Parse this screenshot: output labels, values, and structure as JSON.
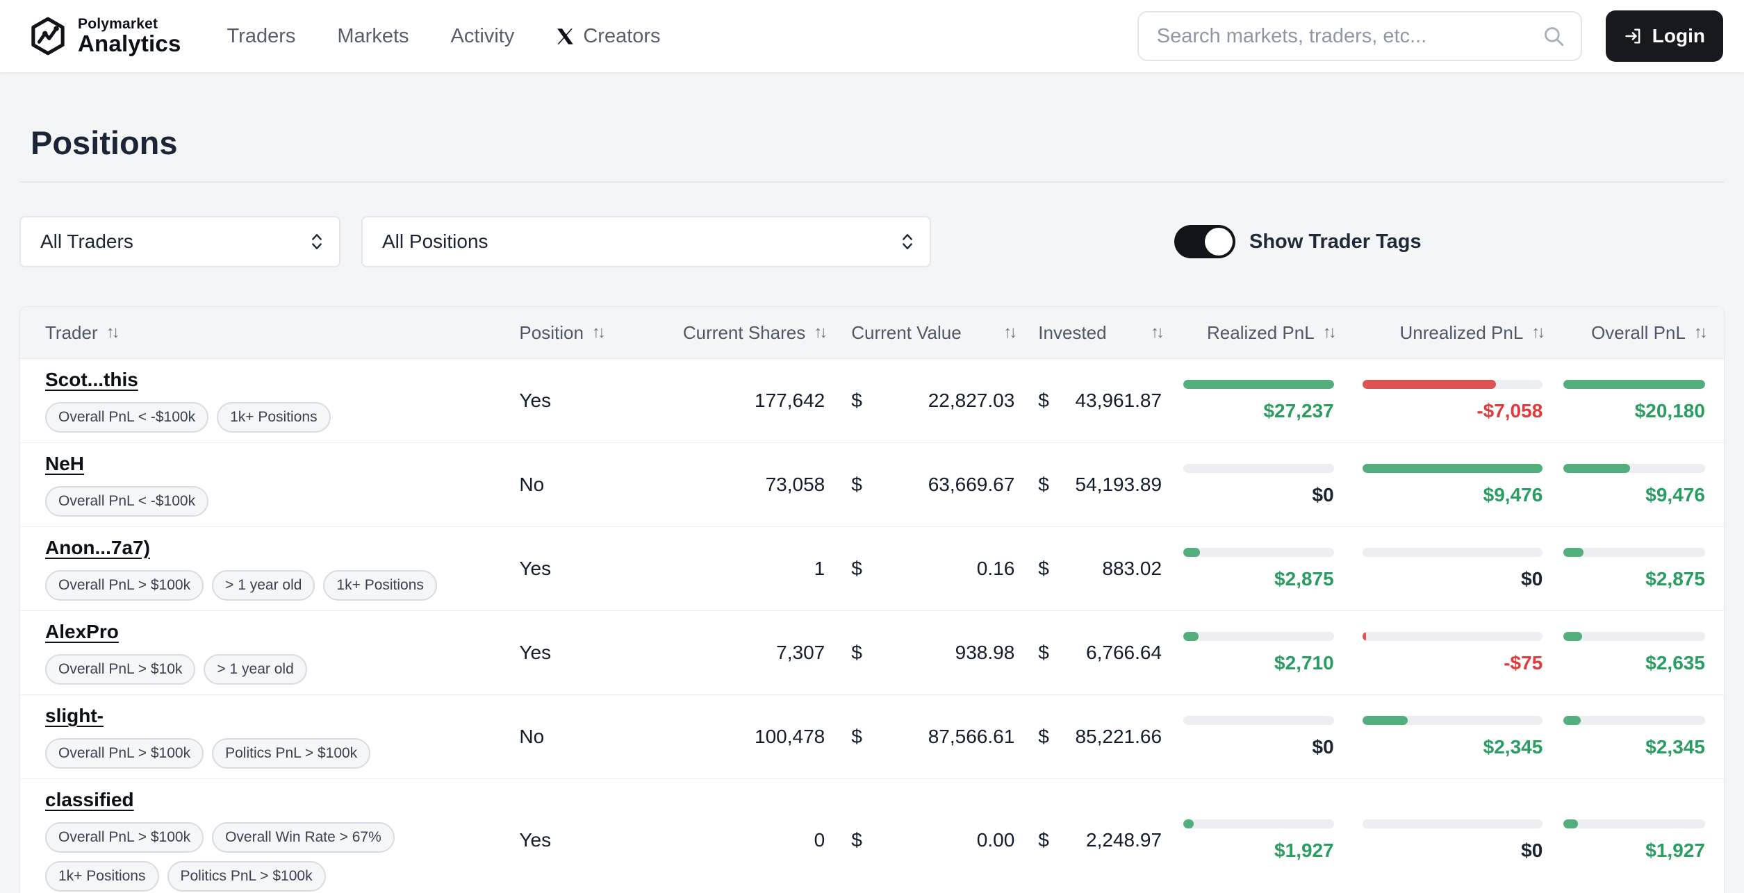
{
  "brand": {
    "line1": "Polymarket",
    "line2": "Analytics"
  },
  "nav": [
    {
      "label": "Traders"
    },
    {
      "label": "Markets"
    },
    {
      "label": "Activity"
    },
    {
      "label": "Creators",
      "icon": "x-logo-icon"
    }
  ],
  "search": {
    "placeholder": "Search markets, traders, etc..."
  },
  "login": {
    "label": "Login",
    "icon": "login-arrow-icon"
  },
  "page": {
    "title": "Positions"
  },
  "filters": {
    "traders_value": "All Traders",
    "positions_value": "All Positions",
    "toggle_label": "Show Trader Tags",
    "toggle_on": true
  },
  "colors": {
    "green_text": "#2b9c62",
    "green_bar": "#53ae7d",
    "red_text": "#de3c3c",
    "red_bar": "#dd5252",
    "neutral_text": "#1b2433",
    "bar_track": "#edeef1",
    "accent_dark": "#17191e"
  },
  "table": {
    "columns": [
      "Trader",
      "Position",
      "Current Shares",
      "Current Value",
      "Invested",
      "Realized PnL",
      "Unrealized PnL",
      "Overall PnL"
    ],
    "currency": "$",
    "sort_icon": "↑↓",
    "rows": [
      {
        "trader": "Scot...this",
        "tags": [
          "Overall PnL < -$100k",
          "1k+ Positions"
        ],
        "position": "Yes",
        "shares": "177,642",
        "value": "22,827.03",
        "invested": "43,961.87",
        "realized": {
          "label": "$27,237",
          "pct": 100,
          "tone": "green"
        },
        "unrealized": {
          "label": "-$7,058",
          "pct": 74,
          "tone": "red"
        },
        "overall": {
          "label": "$20,180",
          "pct": 100,
          "tone": "green"
        }
      },
      {
        "trader": "NeH",
        "tags": [
          "Overall PnL < -$100k"
        ],
        "position": "No",
        "shares": "73,058",
        "value": "63,669.67",
        "invested": "54,193.89",
        "realized": {
          "label": "$0",
          "pct": 0,
          "tone": "neutral"
        },
        "unrealized": {
          "label": "$9,476",
          "pct": 100,
          "tone": "green"
        },
        "overall": {
          "label": "$9,476",
          "pct": 47,
          "tone": "green"
        }
      },
      {
        "trader": "Anon...7a7)",
        "tags": [
          "Overall PnL > $100k",
          "> 1 year old",
          "1k+ Positions"
        ],
        "position": "Yes",
        "shares": "1",
        "value": "0.16",
        "invested": "883.02",
        "realized": {
          "label": "$2,875",
          "pct": 11,
          "tone": "green"
        },
        "unrealized": {
          "label": "$0",
          "pct": 0,
          "tone": "neutral"
        },
        "overall": {
          "label": "$2,875",
          "pct": 14,
          "tone": "green"
        }
      },
      {
        "trader": "AlexPro",
        "tags": [
          "Overall PnL > $10k",
          "> 1 year old"
        ],
        "position": "Yes",
        "shares": "7,307",
        "value": "938.98",
        "invested": "6,766.64",
        "realized": {
          "label": "$2,710",
          "pct": 10,
          "tone": "green"
        },
        "unrealized": {
          "label": "-$75",
          "pct": 1,
          "tone": "red"
        },
        "overall": {
          "label": "$2,635",
          "pct": 13,
          "tone": "green"
        }
      },
      {
        "trader": "slight-",
        "tags": [
          "Overall PnL > $100k",
          "Politics PnL > $100k"
        ],
        "position": "No",
        "shares": "100,478",
        "value": "87,566.61",
        "invested": "85,221.66",
        "realized": {
          "label": "$0",
          "pct": 0,
          "tone": "neutral"
        },
        "unrealized": {
          "label": "$2,345",
          "pct": 25,
          "tone": "green"
        },
        "overall": {
          "label": "$2,345",
          "pct": 12,
          "tone": "green"
        }
      },
      {
        "trader": "classified",
        "tags": [
          "Overall PnL > $100k",
          "Overall Win Rate > 67%",
          "1k+ Positions",
          "Politics PnL > $100k"
        ],
        "position": "Yes",
        "shares": "0",
        "value": "0.00",
        "invested": "2,248.97",
        "realized": {
          "label": "$1,927",
          "pct": 7,
          "tone": "green"
        },
        "unrealized": {
          "label": "$0",
          "pct": 0,
          "tone": "neutral"
        },
        "overall": {
          "label": "$1,927",
          "pct": 10,
          "tone": "green"
        }
      }
    ]
  }
}
